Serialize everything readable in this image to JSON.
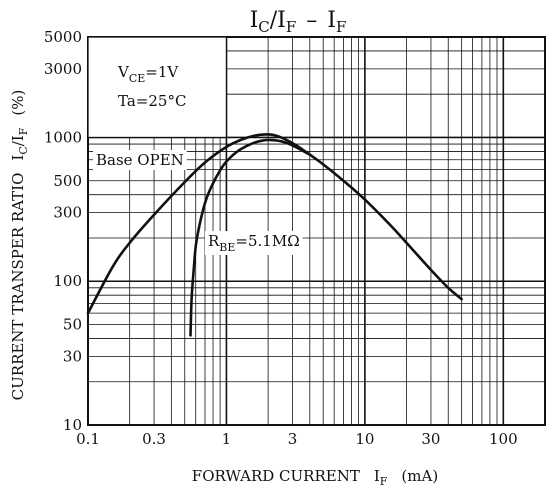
{
  "chart_data": {
    "type": "line",
    "title": "IC/IF – IF",
    "title_parts": {
      "a": "I",
      "a_sub": "C",
      "slash": "/I",
      "b_sub": "F",
      "dash": "–",
      "c": "I",
      "c_sub": "F"
    },
    "xlabel": "FORWARD CURRENT IF (mA)",
    "xlabel_parts": {
      "main": "FORWARD CURRENT",
      "i": "I",
      "i_sub": "F",
      "unit": "(mA)"
    },
    "ylabel": "CURRENT TRANSPER RATIO IC/IF (%)",
    "ylabel_parts": {
      "main": "CURRENT TRANSPER RATIO",
      "i": "I",
      "i_sub": "C",
      "slash": "/I",
      "slash_sub": "F",
      "unit": "(%)"
    },
    "x_scale": "log",
    "y_scale": "log",
    "xlim": [
      0.1,
      200
    ],
    "ylim": [
      10,
      5000
    ],
    "x_ticks": [
      {
        "v": 0.1,
        "label": "0.1"
      },
      {
        "v": 0.3,
        "label": "0.3"
      },
      {
        "v": 1,
        "label": "1"
      },
      {
        "v": 3,
        "label": "3"
      },
      {
        "v": 10,
        "label": "10"
      },
      {
        "v": 30,
        "label": "30"
      },
      {
        "v": 100,
        "label": "100"
      }
    ],
    "y_ticks": [
      {
        "v": 10,
        "label": "10"
      },
      {
        "v": 30,
        "label": "30"
      },
      {
        "v": 50,
        "label": "50"
      },
      {
        "v": 100,
        "label": "100"
      },
      {
        "v": 300,
        "label": "300"
      },
      {
        "v": 500,
        "label": "500"
      },
      {
        "v": 1000,
        "label": "1000"
      },
      {
        "v": 3000,
        "label": "3000"
      },
      {
        "v": 5000,
        "label": "5000"
      }
    ],
    "grid": true,
    "conditions": [
      {
        "main": "V",
        "sub": "CE",
        "rest": "=1V"
      },
      {
        "main": "Ta=25°C",
        "sub": "",
        "rest": ""
      }
    ],
    "series": [
      {
        "name": "Base OPEN",
        "label": {
          "main": "Base OPEN",
          "sub": "",
          "rest": ""
        },
        "x": [
          0.1,
          0.15,
          0.2,
          0.3,
          0.5,
          0.7,
          1,
          1.3,
          1.6,
          1.9,
          2.2,
          2.6,
          3.2,
          4,
          5,
          7,
          10,
          15,
          20,
          30,
          40,
          50
        ],
        "y": [
          60,
          125,
          185,
          290,
          490,
          670,
          860,
          970,
          1030,
          1050,
          1040,
          980,
          880,
          760,
          650,
          500,
          370,
          250,
          185,
          120,
          90,
          75
        ]
      },
      {
        "name": "RBE=5.1MΩ",
        "label": {
          "main": "R",
          "sub": "BE",
          "rest": "=5.1MΩ"
        },
        "x": [
          0.55,
          0.56,
          0.58,
          0.6,
          0.63,
          0.67,
          0.72,
          0.8,
          0.9,
          1,
          1.2,
          1.5,
          1.8,
          2.1,
          2.5,
          3,
          4
        ],
        "y": [
          42,
          75,
          120,
          175,
          230,
          300,
          380,
          480,
          590,
          680,
          800,
          900,
          950,
          960,
          940,
          880,
          760
        ]
      }
    ]
  }
}
